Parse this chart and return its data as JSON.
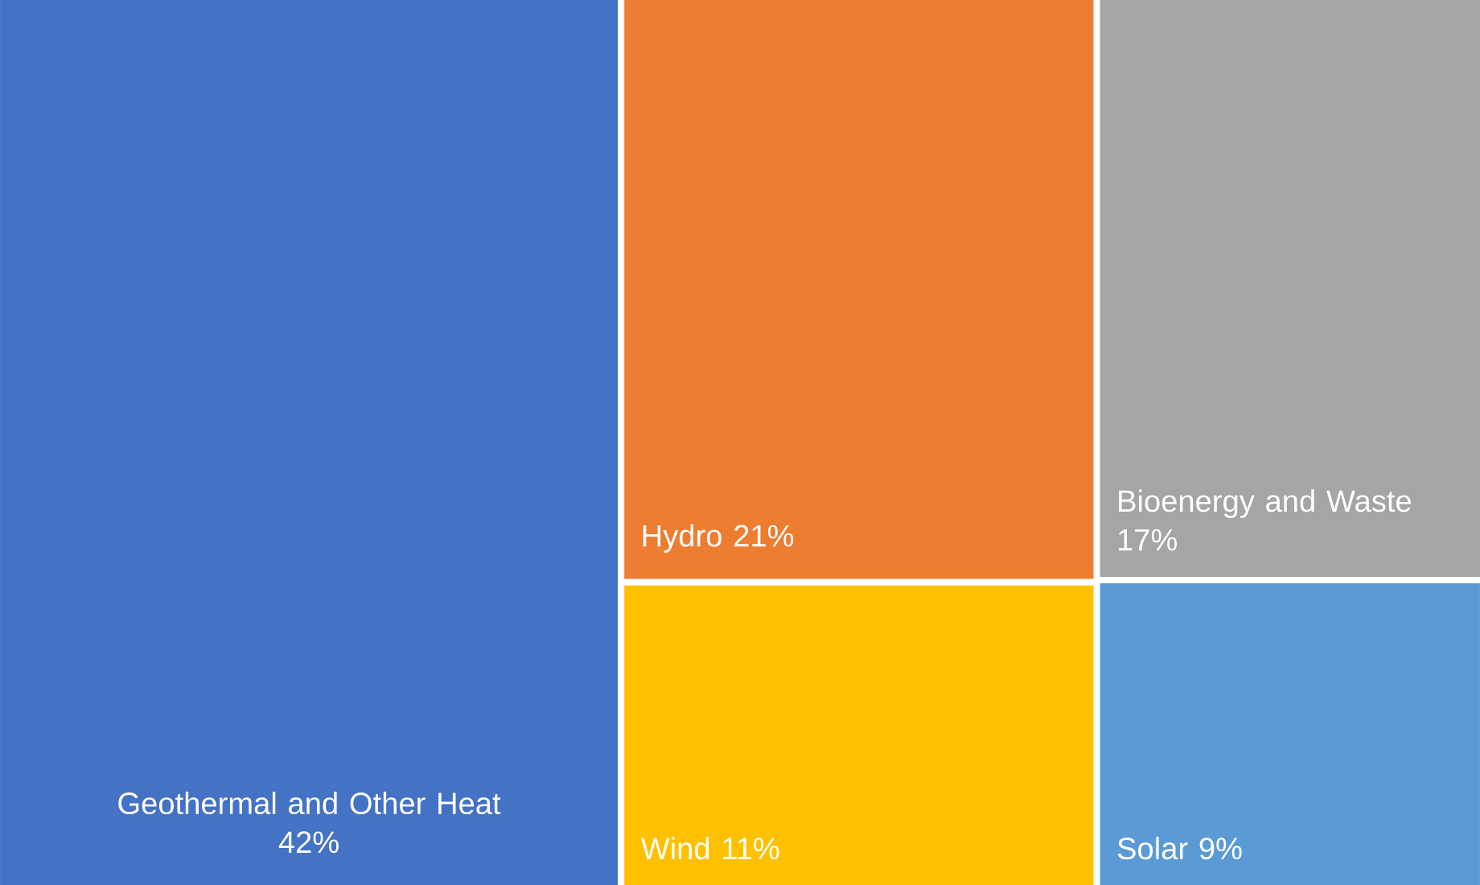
{
  "chart_data": {
    "type": "other",
    "categories": [
      "Geothermal and Other Heat",
      "Hydro",
      "Bioenergy and Waste",
      "Wind",
      "Solar"
    ],
    "values": [
      42,
      21,
      17,
      11,
      9
    ],
    "value_labels": [
      "42%",
      "21%",
      "17%",
      "11%",
      "9%"
    ],
    "colors": [
      "#4472c4",
      "#ed7d31",
      "#a5a5a5",
      "#ffc000",
      "#5b9bd5"
    ]
  }
}
